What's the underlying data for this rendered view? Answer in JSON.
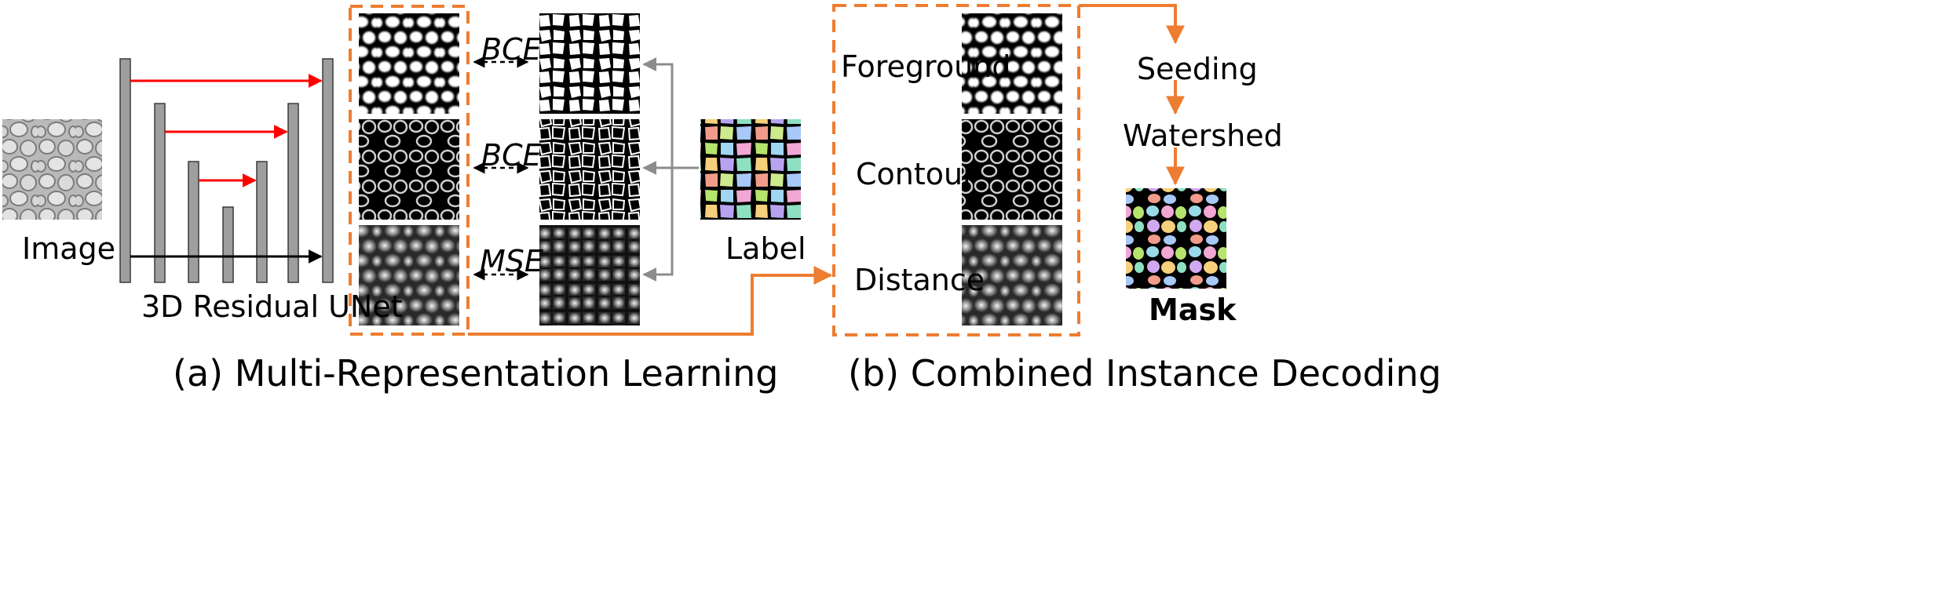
{
  "labels": {
    "image": "Image",
    "unet": "3D Residual UNet",
    "label": "Label",
    "mask": "Mask",
    "foreground": "Foreground",
    "contour": "Contour",
    "distance": "Distance",
    "seeding": "Seeding",
    "watershed": "Watershed"
  },
  "losses": [
    "BCE",
    "BCE",
    "MSE"
  ],
  "captions": {
    "a": "(a) Multi-Representation Learning",
    "b": "(b) Combined Instance Decoding"
  },
  "colors": {
    "orange": "#ED7D31",
    "red": "#FF0000",
    "gray_block": "#9E9E9E",
    "gray_arrow": "#8C8C8C"
  }
}
